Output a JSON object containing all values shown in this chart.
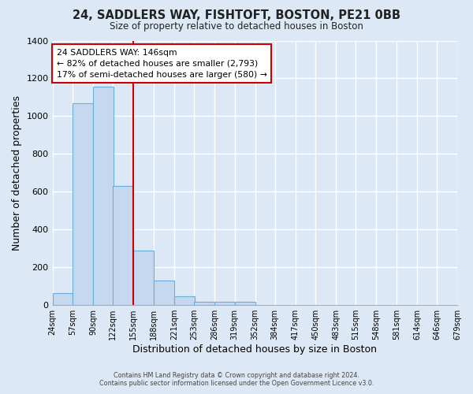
{
  "title": "24, SADDLERS WAY, FISHTOFT, BOSTON, PE21 0BB",
  "subtitle": "Size of property relative to detached houses in Boston",
  "xlabel": "Distribution of detached houses by size in Boston",
  "ylabel": "Number of detached properties",
  "footer_line1": "Contains HM Land Registry data © Crown copyright and database right 2024.",
  "footer_line2": "Contains public sector information licensed under the Open Government Licence v3.0.",
  "bar_color": "#c5d8f0",
  "bar_edgecolor": "#6aaed6",
  "background_color": "#dce8f5",
  "grid_color": "#ffffff",
  "annotation_box_edgecolor": "#cc0000",
  "red_line_color": "#cc0000",
  "bins_left_edges": [
    24,
    57,
    90,
    122,
    155,
    188,
    221,
    253,
    286,
    319,
    352,
    384,
    417,
    450,
    483,
    515,
    548,
    581,
    614,
    646
  ],
  "bin_width": 33,
  "bar_heights": [
    65,
    1070,
    1155,
    630,
    290,
    130,
    45,
    18,
    18,
    18,
    0,
    0,
    0,
    0,
    0,
    0,
    0,
    0,
    0,
    0
  ],
  "x_tick_labels": [
    "24sqm",
    "57sqm",
    "90sqm",
    "122sqm",
    "155sqm",
    "188sqm",
    "221sqm",
    "253sqm",
    "286sqm",
    "319sqm",
    "352sqm",
    "384sqm",
    "417sqm",
    "450sqm",
    "483sqm",
    "515sqm",
    "548sqm",
    "581sqm",
    "614sqm",
    "646sqm",
    "679sqm"
  ],
  "ylim": [
    0,
    1400
  ],
  "yticks": [
    0,
    200,
    400,
    600,
    800,
    1000,
    1200,
    1400
  ],
  "red_line_x": 155,
  "annotation_title": "24 SADDLERS WAY: 146sqm",
  "annotation_line2": "← 82% of detached houses are smaller (2,793)",
  "annotation_line3": "17% of semi-detached houses are larger (580) →"
}
